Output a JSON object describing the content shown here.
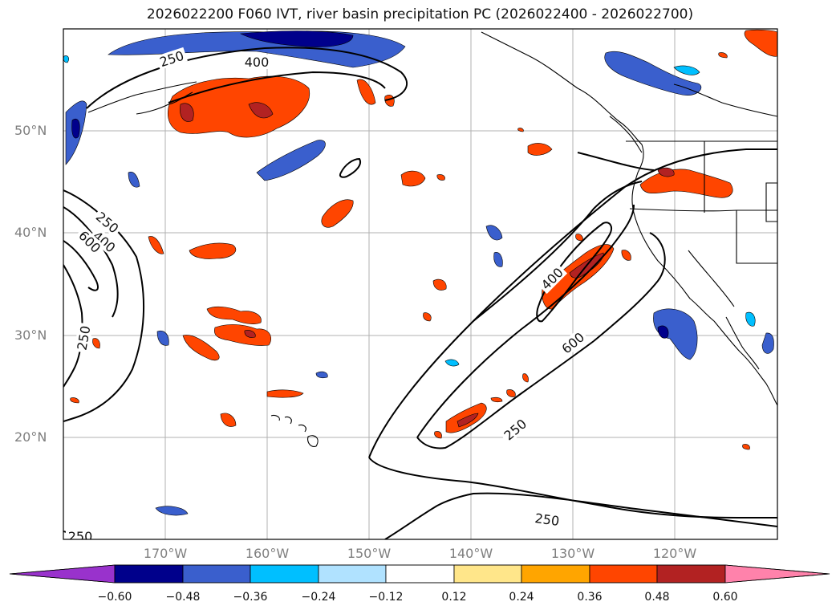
{
  "title": "2026022200 F060 IVT, river basin precipitation PC (2026022400 - 2026022700)",
  "latitude_labels": [
    "50°N",
    "40°N",
    "30°N",
    "20°N"
  ],
  "longitude_labels": [
    "170°W",
    "160°W",
    "150°W",
    "140°W",
    "130°W",
    "120°W"
  ],
  "colorbar": {
    "ticks": [
      "−0.60",
      "−0.48",
      "−0.36",
      "−0.24",
      "−0.12",
      "0.12",
      "0.24",
      "0.36",
      "0.48",
      "0.60"
    ],
    "colors": [
      "#9932cc",
      "#00008b",
      "#3a5fcd",
      "#00bfff",
      "#b0e2ff",
      "#ffffff",
      "#ffe68a",
      "#ffa500",
      "#ff4500",
      "#b22222",
      "#ff82ab"
    ]
  },
  "contour_labels": {
    "c250": "250",
    "c400": "400",
    "c600": "600"
  }
}
